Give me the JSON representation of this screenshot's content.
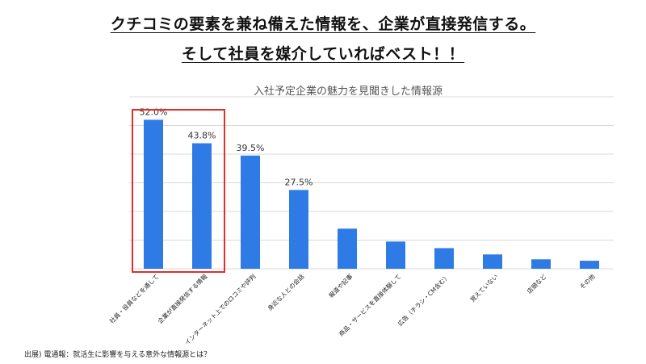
{
  "headline": {
    "line1": "クチコミの要素を兼ね備えた情報を、企業が直接発信する。",
    "line2": "そして社員を媒介していればベスト！！"
  },
  "source": "出展) 電通報：就活生に影響を与える意外な情報源とは？",
  "colors": {
    "bar": "#2f7be6",
    "highlight": "#e0302a",
    "grid": "#d9d9d9"
  },
  "chart_data": {
    "type": "bar",
    "title": "入社予定企業の魅力を見聞きした情報源",
    "categories": [
      "社員・役員などを通して",
      "企業が直接発信する情報",
      "インターネット上でのロコミや評判",
      "身近な人との会話",
      "報道や記事",
      "商品・サービスを直接体験して",
      "広告（チラシ・CM含む）",
      "覚えていない",
      "店頭など",
      "その他"
    ],
    "values": [
      52.0,
      43.8,
      39.5,
      27.5,
      14.0,
      9.5,
      7.2,
      5.0,
      3.3,
      2.8
    ],
    "data_labels": [
      "52.0%",
      "43.8%",
      "39.5%",
      "27.5%",
      null,
      null,
      null,
      null,
      null,
      null
    ],
    "ylim": [
      0,
      60
    ],
    "grid": true,
    "highlighted_categories": [
      0,
      1
    ]
  }
}
